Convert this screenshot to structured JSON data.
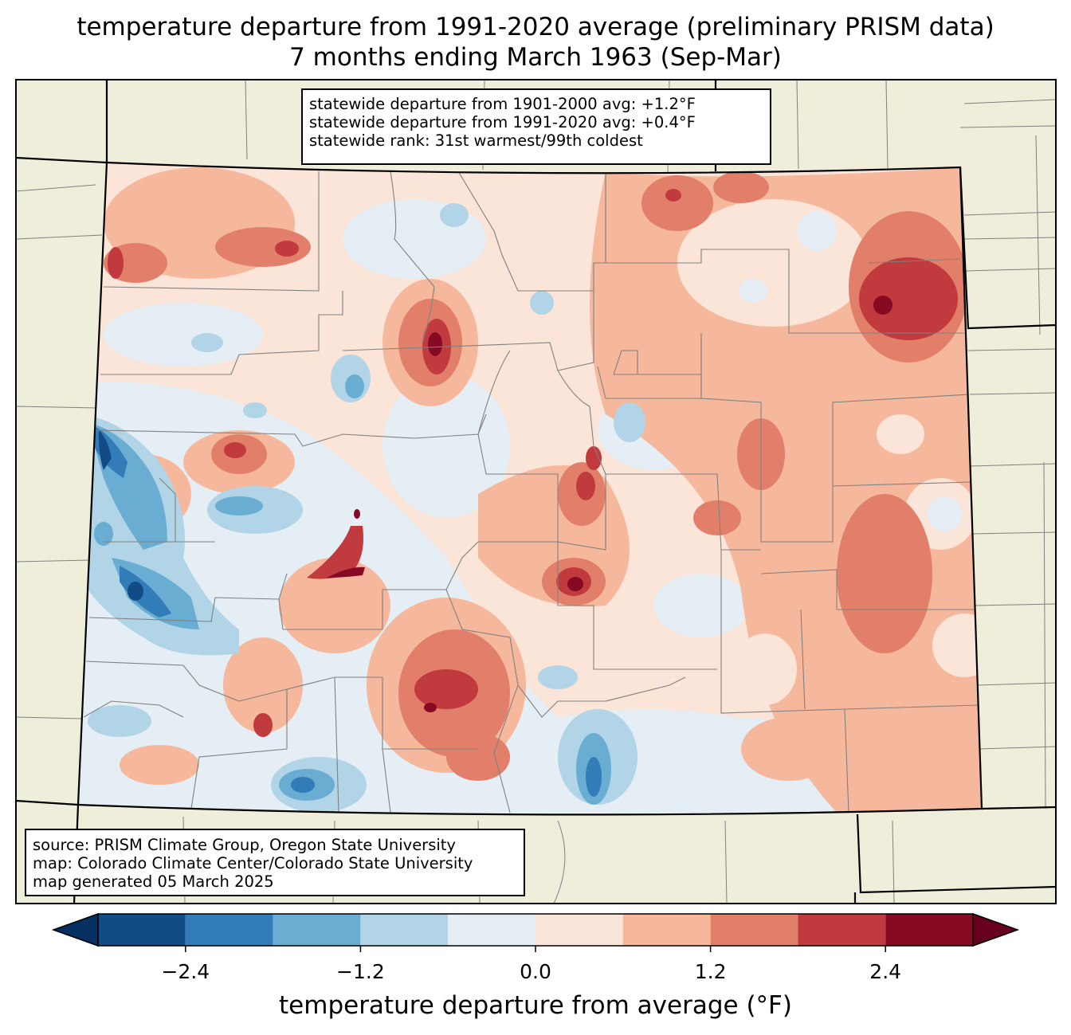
{
  "title_line1": "temperature departure from 1991-2020 average (preliminary PRISM data)",
  "title_line2": "7 months ending March 1963 (Sep-Mar)",
  "stats": {
    "line1": "statewide departure from 1901-2000 avg: +1.2°F",
    "line2": "statewide departure from 1991-2020 avg: +0.4°F",
    "line3": "statewide rank: 31st warmest/99th coldest"
  },
  "source": {
    "line1": "source: PRISM Climate Group, Oregon State University",
    "line2": "map: Colorado Climate Center/Colorado State University",
    "line3": "map generated 05 March 2025"
  },
  "colorbar": {
    "label": "temperature departure from average (°F)",
    "ticks": [
      "−2.4",
      "−1.2",
      "0.0",
      "1.2",
      "2.4"
    ],
    "tick_values": [
      -2.4,
      -1.2,
      0.0,
      1.2,
      2.4
    ],
    "min": -3.0,
    "max": 3.0,
    "bins": [
      {
        "from": -3.0,
        "to": -2.4,
        "color": "#134b87"
      },
      {
        "from": -2.4,
        "to": -1.8,
        "color": "#327cb8"
      },
      {
        "from": -1.8,
        "to": -1.2,
        "color": "#6aadd3"
      },
      {
        "from": -1.2,
        "to": -0.6,
        "color": "#b1d4e7"
      },
      {
        "from": -0.6,
        "to": 0.0,
        "color": "#e5eef4"
      },
      {
        "from": 0.0,
        "to": 0.6,
        "color": "#fbe4d8"
      },
      {
        "from": 0.6,
        "to": 1.2,
        "color": "#f6b89c"
      },
      {
        "from": 1.2,
        "to": 1.8,
        "color": "#e27f6a"
      },
      {
        "from": 1.8,
        "to": 2.4,
        "color": "#c13a3e"
      },
      {
        "from": 2.4,
        "to": 3.0,
        "color": "#870a24"
      }
    ],
    "under_color": "#053061",
    "over_color": "#67001f"
  },
  "map_colors": {
    "land": "#efeedb",
    "county_lines": "#808080",
    "state_lines": "#000000"
  }
}
